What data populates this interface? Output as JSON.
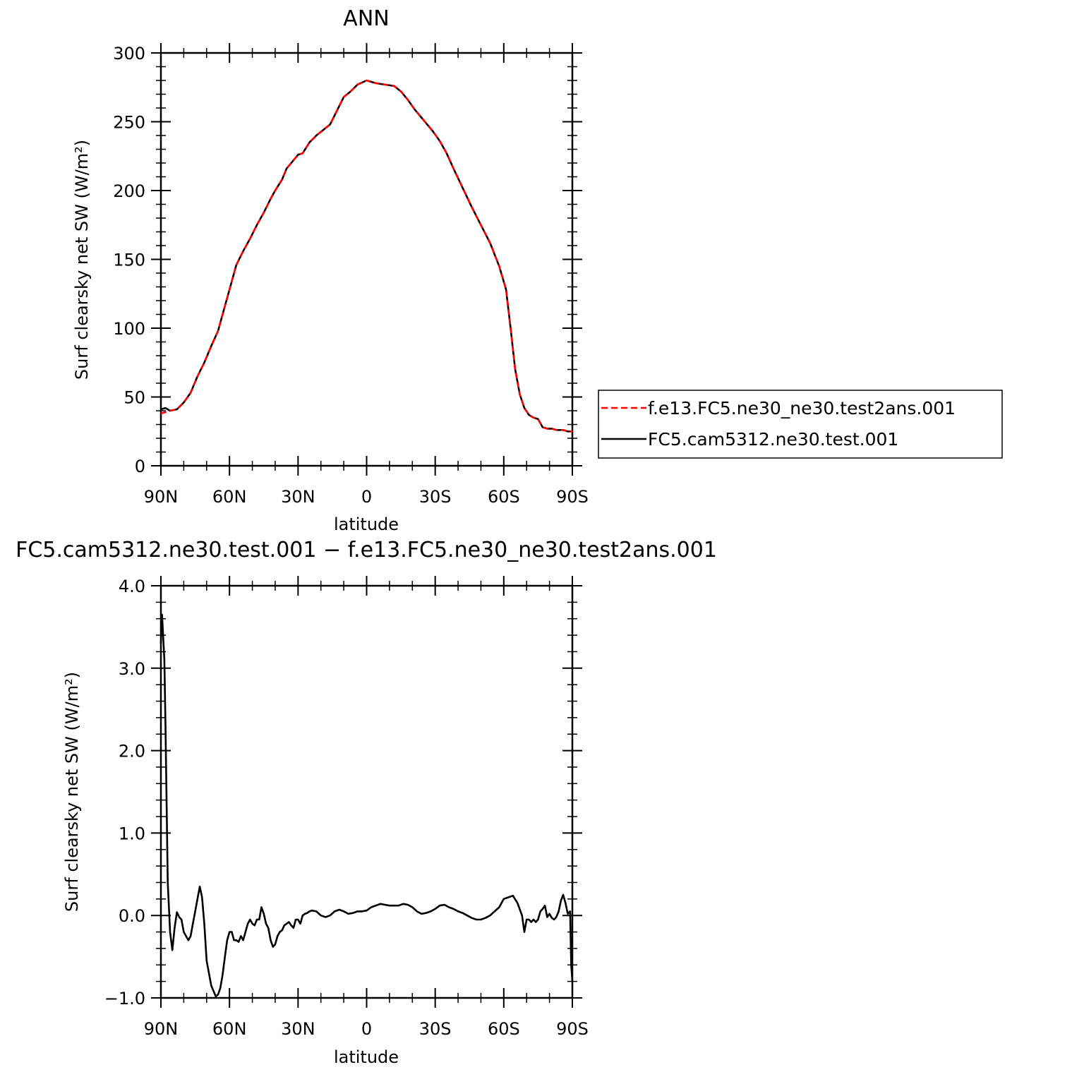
{
  "chart_data": [
    {
      "type": "line",
      "title": "ANN",
      "xlabel": "latitude",
      "ylabel": "Surf clearsky net SW (W/m²)",
      "xlim": [
        90,
        -90
      ],
      "ylim": [
        0,
        300
      ],
      "yticks": [
        0,
        50,
        100,
        150,
        200,
        250,
        300
      ],
      "yticks_labels": [
        "0",
        "50",
        "100",
        "150",
        "200",
        "250",
        "300"
      ],
      "xticks": [
        90,
        60,
        30,
        0,
        -30,
        -60,
        -90
      ],
      "xticks_labels": [
        "90N",
        "60N",
        "30N",
        "0",
        "30S",
        "60S",
        "90S"
      ],
      "legend": {
        "position": "right",
        "entries": [
          {
            "label": "f.e13.FC5.ne30_ne30.test2ans.001",
            "color": "#ff0000",
            "dash": "dashed"
          },
          {
            "label": "FC5.cam5312.ne30.test.001",
            "color": "#000000",
            "dash": "solid"
          }
        ]
      },
      "series": [
        {
          "name": "f.e13.FC5.ne30_ne30.test2ans.001",
          "color": "#ff0000",
          "dash": "dashed",
          "x": [
            90,
            88,
            86,
            83,
            80,
            77,
            74,
            71,
            68,
            65,
            63,
            60,
            57,
            54,
            51,
            48,
            45,
            42,
            40,
            37,
            35,
            32,
            30,
            28,
            25,
            22,
            19,
            16,
            13,
            10,
            7,
            4,
            0,
            -4,
            -8,
            -12,
            -15,
            -18,
            -21,
            -25,
            -29,
            -32,
            -35,
            -38,
            -42,
            -46,
            -50,
            -54,
            -58,
            -61,
            -63,
            -65,
            -67,
            -69,
            -71,
            -73,
            -75,
            -77,
            -79,
            -81,
            -83,
            -86,
            -88,
            -90
          ],
          "values": [
            38,
            39,
            40,
            41,
            46,
            53,
            65,
            75,
            87,
            98,
            110,
            128,
            146,
            156,
            165,
            175,
            184,
            194,
            200,
            208,
            216,
            222,
            226,
            227,
            235,
            240,
            244,
            248,
            258,
            268,
            272,
            277,
            280,
            278,
            277,
            276,
            272,
            266,
            259,
            251,
            243,
            236,
            227,
            216,
            202,
            188,
            175,
            162,
            145,
            128,
            100,
            70,
            52,
            42,
            37,
            35,
            34,
            28,
            27,
            27,
            26,
            26,
            25,
            25
          ]
        },
        {
          "name": "FC5.cam5312.ne30.test.001",
          "color": "#000000",
          "dash": "solid",
          "x": [
            90,
            88,
            86,
            83,
            80,
            77,
            74,
            71,
            68,
            65,
            63,
            60,
            57,
            54,
            51,
            48,
            45,
            42,
            40,
            37,
            35,
            32,
            30,
            28,
            25,
            22,
            19,
            16,
            13,
            10,
            7,
            4,
            0,
            -4,
            -8,
            -12,
            -15,
            -18,
            -21,
            -25,
            -29,
            -32,
            -35,
            -38,
            -42,
            -46,
            -50,
            -54,
            -58,
            -61,
            -63,
            -65,
            -67,
            -69,
            -71,
            -73,
            -75,
            -77,
            -79,
            -81,
            -83,
            -86,
            -88,
            -90
          ],
          "values": [
            41,
            42,
            40,
            41,
            46,
            53,
            65,
            75,
            87,
            98,
            110,
            128,
            146,
            156,
            165,
            175,
            184,
            194,
            200,
            208,
            216,
            222,
            226,
            227,
            235,
            240,
            244,
            248,
            258,
            268,
            272,
            277,
            280,
            278,
            277,
            276,
            272,
            266,
            259,
            251,
            243,
            236,
            227,
            216,
            202,
            188,
            175,
            162,
            145,
            128,
            100,
            70,
            52,
            42,
            37,
            35,
            34,
            28,
            27,
            27,
            26,
            26,
            25,
            25
          ]
        }
      ]
    },
    {
      "type": "line",
      "title": "FC5.cam5312.ne30.test.001 − f.e13.FC5.ne30_ne30.test2ans.001",
      "xlabel": "latitude",
      "ylabel": "Surf clearsky net SW (W/m²)",
      "xlim": [
        90,
        -90
      ],
      "ylim": [
        -1.0,
        4.0
      ],
      "yticks": [
        -1.0,
        0.0,
        1.0,
        2.0,
        3.0,
        4.0
      ],
      "yticks_labels": [
        "−1.0",
        "0.0",
        "1.0",
        "2.0",
        "3.0",
        "4.0"
      ],
      "xticks": [
        90,
        60,
        30,
        0,
        -30,
        -60,
        -90
      ],
      "xticks_labels": [
        "90N",
        "60N",
        "30N",
        "0",
        "30S",
        "60S",
        "90S"
      ],
      "series": [
        {
          "name": "",
          "color": "#000000",
          "dash": "solid",
          "x": [
            90,
            89.5,
            88.5,
            88,
            87,
            86,
            85,
            84,
            83,
            82,
            81,
            80,
            78,
            77,
            76,
            75,
            74,
            73,
            72,
            71,
            70,
            68,
            66,
            65,
            64,
            63,
            62,
            61,
            60,
            59,
            58,
            57,
            56,
            55,
            54,
            53,
            52,
            51,
            50,
            49,
            48,
            47,
            46,
            45,
            44,
            43,
            42,
            41,
            40,
            39,
            38,
            37,
            36,
            35,
            34,
            33,
            32,
            31,
            30,
            29,
            28,
            27,
            26,
            25,
            24,
            22,
            20,
            18,
            16,
            14,
            12,
            10,
            8,
            6,
            4,
            2,
            0,
            -2,
            -4,
            -6,
            -8,
            -10,
            -12,
            -14,
            -16,
            -18,
            -20,
            -22,
            -24,
            -26,
            -28,
            -30,
            -32,
            -34,
            -36,
            -38,
            -40,
            -42,
            -44,
            -46,
            -48,
            -50,
            -52,
            -54,
            -56,
            -58,
            -60,
            -62,
            -64,
            -66,
            -68,
            -69,
            -70,
            -71,
            -72,
            -73,
            -74,
            -75,
            -76,
            -77,
            -78,
            -79,
            -80,
            -81,
            -82,
            -83,
            -84,
            -85,
            -86,
            -87,
            -88,
            -89,
            -89.5,
            -90
          ],
          "values": [
            3.3,
            3.65,
            3.1,
            2.3,
            0.4,
            -0.2,
            -0.42,
            -0.15,
            0.04,
            -0.02,
            -0.05,
            -0.2,
            -0.3,
            -0.25,
            -0.1,
            0.05,
            0.2,
            0.35,
            0.22,
            -0.1,
            -0.55,
            -0.85,
            -0.98,
            -0.96,
            -0.88,
            -0.72,
            -0.5,
            -0.3,
            -0.2,
            -0.2,
            -0.3,
            -0.3,
            -0.32,
            -0.25,
            -0.3,
            -0.2,
            -0.1,
            -0.05,
            -0.1,
            -0.12,
            -0.05,
            -0.05,
            0.1,
            0.02,
            -0.1,
            -0.15,
            -0.3,
            -0.38,
            -0.35,
            -0.25,
            -0.2,
            -0.18,
            -0.12,
            -0.1,
            -0.08,
            -0.12,
            -0.15,
            -0.05,
            -0.05,
            -0.1,
            0.0,
            0.02,
            0.03,
            0.05,
            0.06,
            0.05,
            0.0,
            -0.02,
            0.0,
            0.05,
            0.07,
            0.05,
            0.02,
            0.03,
            0.05,
            0.05,
            0.06,
            0.1,
            0.12,
            0.14,
            0.13,
            0.12,
            0.12,
            0.12,
            0.14,
            0.13,
            0.1,
            0.05,
            0.02,
            0.03,
            0.05,
            0.08,
            0.12,
            0.13,
            0.1,
            0.08,
            0.05,
            0.03,
            0.0,
            -0.03,
            -0.05,
            -0.05,
            -0.03,
            0.0,
            0.05,
            0.1,
            0.2,
            0.22,
            0.24,
            0.15,
            0.0,
            -0.2,
            -0.05,
            -0.05,
            -0.08,
            -0.05,
            -0.08,
            -0.05,
            0.05,
            0.08,
            0.12,
            -0.02,
            0.02,
            -0.03,
            -0.05,
            -0.02,
            0.05,
            0.18,
            0.25,
            0.15,
            0.02,
            0.05,
            -0.6,
            -0.8
          ]
        }
      ]
    }
  ]
}
